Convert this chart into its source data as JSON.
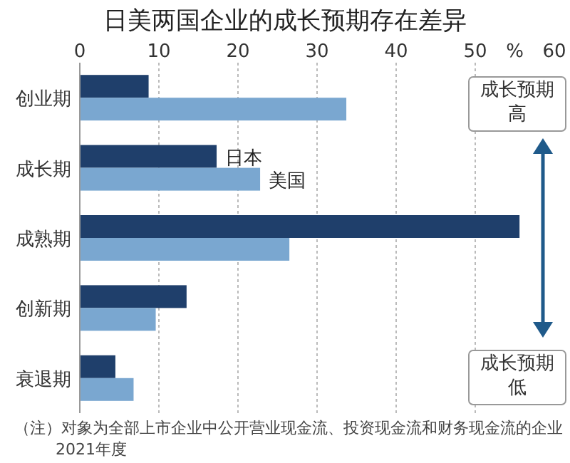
{
  "chart_data": {
    "type": "bar",
    "orientation": "horizontal",
    "title": "日美两国企业的成长预期存在差异",
    "xlabel": "%",
    "categories": [
      "创业期",
      "成长期",
      "成熟期",
      "创新期",
      "衰退期"
    ],
    "series": [
      {
        "name": "日本",
        "color": "#1f3f6b",
        "values": [
          8.7,
          17.3,
          55.6,
          13.5,
          4.5
        ]
      },
      {
        "name": "美国",
        "color": "#7aa7d0",
        "values": [
          33.7,
          22.8,
          26.5,
          9.6,
          6.8
        ]
      }
    ],
    "xlim": [
      0,
      60
    ],
    "xticks": [
      0,
      10,
      20,
      30,
      40,
      50,
      60
    ],
    "grid": "x",
    "annotations": [
      "成长预期高",
      "成长预期低",
      "（注）对象为全部上市企业中公开营业现金流、投资现金流和财务现金流的企业",
      "2021年度"
    ]
  }
}
